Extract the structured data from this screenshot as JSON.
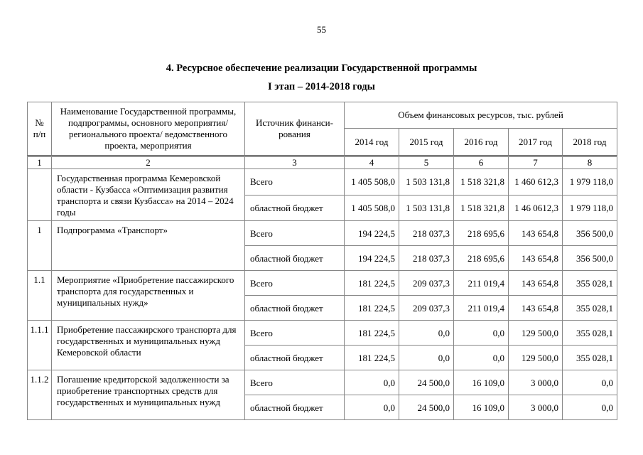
{
  "page": {
    "number": "55",
    "title": "4. Ресурсное обеспечение реализации Государственной программы",
    "subtitle": "I этап – 2014-2018 годы"
  },
  "table": {
    "headers": {
      "num": "№\nп/п",
      "name": "Наименование Государственной программы, подпрограммы, основного мероприятия/регионального проекта/ ведомственного проекта, мероприятия",
      "source": "Источник финанси-\nрования",
      "volume": "Объем финансовых ресурсов, тыс. рублей",
      "years": [
        "2014 год",
        "2015 год",
        "2016 год",
        "2017 год",
        "2018 год"
      ]
    },
    "column_numbers": [
      "1",
      "2",
      "3",
      "4",
      "5",
      "6",
      "7",
      "8"
    ],
    "rows": [
      {
        "num": "",
        "name": "Государственная программа Кемеровской области - Кузбасса «Оптимизация развития транспорта и связи Кузбасса» на 2014 – 2024 годы",
        "sources": [
          {
            "label": "Всего",
            "values": [
              "1 405 508,0",
              "1 503 131,8",
              "1 518 321,8",
              "1 460 612,3",
              "1 979 118,0"
            ]
          },
          {
            "label": "областной бюджет",
            "values": [
              "1 405 508,0",
              "1 503 131,8",
              "1 518 321,8",
              "1 46 0612,3",
              "1 979 118,0"
            ]
          }
        ]
      },
      {
        "num": "1",
        "name": "Подпрограмма «Транспорт»",
        "sources": [
          {
            "label": "Всего",
            "values": [
              "194 224,5",
              "218 037,3",
              "218 695,6",
              "143 654,8",
              "356 500,0"
            ]
          },
          {
            "label": "областной бюджет",
            "values": [
              "194 224,5",
              "218 037,3",
              "218 695,6",
              "143 654,8",
              "356 500,0"
            ]
          }
        ]
      },
      {
        "num": "1.1",
        "name": "Мероприятие «Приобретение пассажирского транспорта для государственных и муниципальных нужд»",
        "sources": [
          {
            "label": "Всего",
            "values": [
              "181 224,5",
              "209 037,3",
              "211 019,4",
              "143 654,8",
              "355 028,1"
            ]
          },
          {
            "label": "областной бюджет",
            "values": [
              "181 224,5",
              "209 037,3",
              "211 019,4",
              "143 654,8",
              "355 028,1"
            ]
          }
        ]
      },
      {
        "num": "1.1.1",
        "name": "Приобретение пассажирского транспорта для государственных и муниципальных нужд Кемеровской области",
        "sources": [
          {
            "label": "Всего",
            "values": [
              "181 224,5",
              "0,0",
              "0,0",
              "129 500,0",
              "355 028,1"
            ]
          },
          {
            "label": "областной бюджет",
            "values": [
              "181 224,5",
              "0,0",
              "0,0",
              "129 500,0",
              "355 028,1"
            ]
          }
        ]
      },
      {
        "num": "1.1.2",
        "name": "Погашение кредиторской задолженности за приобретение транспортных средств для государственных и муниципальных нужд",
        "sources": [
          {
            "label": "Всего",
            "values": [
              "0,0",
              "24 500,0",
              "16 109,0",
              "3 000,0",
              "0,0"
            ]
          },
          {
            "label": "областной бюджет",
            "values": [
              "0,0",
              "24 500,0",
              "16 109,0",
              "3 000,0",
              "0,0"
            ]
          }
        ]
      }
    ]
  }
}
